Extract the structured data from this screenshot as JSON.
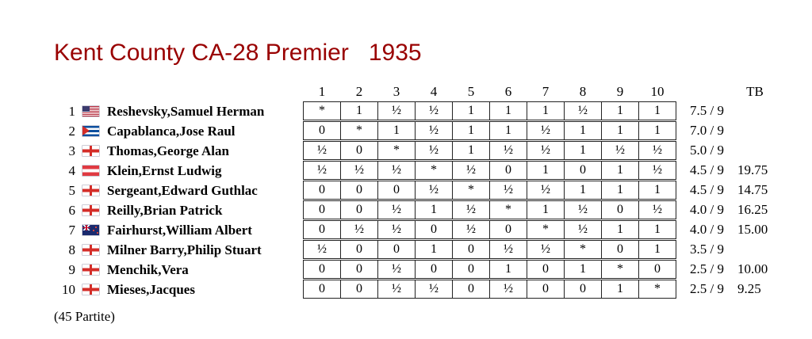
{
  "title": "Kent County CA-28 Premier   1935",
  "footer_note": "(45 Partite)",
  "colors": {
    "title_accent": "#990000"
  },
  "table": {
    "tb_header": "TB",
    "round_headers": [
      "1",
      "2",
      "3",
      "4",
      "5",
      "6",
      "7",
      "8",
      "9",
      "10"
    ],
    "rows": [
      {
        "rank": "1",
        "flag": "usa",
        "name": "Reshevsky,Samuel Herman",
        "results": [
          "*",
          "1",
          "½",
          "½",
          "1",
          "1",
          "1",
          "½",
          "1",
          "1"
        ],
        "score": "7.5 / 9",
        "tb": ""
      },
      {
        "rank": "2",
        "flag": "cub",
        "name": "Capablanca,Jose Raul",
        "results": [
          "0",
          "*",
          "1",
          "½",
          "1",
          "1",
          "½",
          "1",
          "1",
          "1"
        ],
        "score": "7.0 / 9",
        "tb": ""
      },
      {
        "rank": "3",
        "flag": "eng",
        "name": "Thomas,George Alan",
        "results": [
          "½",
          "0",
          "*",
          "½",
          "1",
          "½",
          "½",
          "1",
          "½",
          "½"
        ],
        "score": "5.0 / 9",
        "tb": ""
      },
      {
        "rank": "4",
        "flag": "aut",
        "name": "Klein,Ernst Ludwig",
        "results": [
          "½",
          "½",
          "½",
          "*",
          "½",
          "0",
          "1",
          "0",
          "1",
          "½"
        ],
        "score": "4.5 / 9",
        "tb": "19.75"
      },
      {
        "rank": "5",
        "flag": "eng",
        "name": "Sergeant,Edward Guthlac",
        "results": [
          "0",
          "0",
          "0",
          "½",
          "*",
          "½",
          "½",
          "1",
          "1",
          "1"
        ],
        "score": "4.5 / 9",
        "tb": "14.75"
      },
      {
        "rank": "6",
        "flag": "eng",
        "name": "Reilly,Brian Patrick",
        "results": [
          "0",
          "0",
          "½",
          "1",
          "½",
          "*",
          "1",
          "½",
          "0",
          "½"
        ],
        "score": "4.0 / 9",
        "tb": "16.25"
      },
      {
        "rank": "7",
        "flag": "nzl",
        "name": "Fairhurst,William Albert",
        "results": [
          "0",
          "½",
          "½",
          "0",
          "½",
          "0",
          "*",
          "½",
          "1",
          "1"
        ],
        "score": "4.0 / 9",
        "tb": "15.00"
      },
      {
        "rank": "8",
        "flag": "eng",
        "name": "Milner Barry,Philip Stuart",
        "results": [
          "½",
          "0",
          "0",
          "1",
          "0",
          "½",
          "½",
          "*",
          "0",
          "1"
        ],
        "score": "3.5 / 9",
        "tb": ""
      },
      {
        "rank": "9",
        "flag": "eng",
        "name": "Menchik,Vera",
        "results": [
          "0",
          "0",
          "½",
          "0",
          "0",
          "1",
          "0",
          "1",
          "*",
          "0"
        ],
        "score": "2.5 / 9",
        "tb": "10.00"
      },
      {
        "rank": "10",
        "flag": "eng",
        "name": "Mieses,Jacques",
        "results": [
          "0",
          "0",
          "½",
          "½",
          "0",
          "½",
          "0",
          "0",
          "1",
          "*"
        ],
        "score": "2.5 / 9",
        "tb": "9.25"
      }
    ]
  }
}
